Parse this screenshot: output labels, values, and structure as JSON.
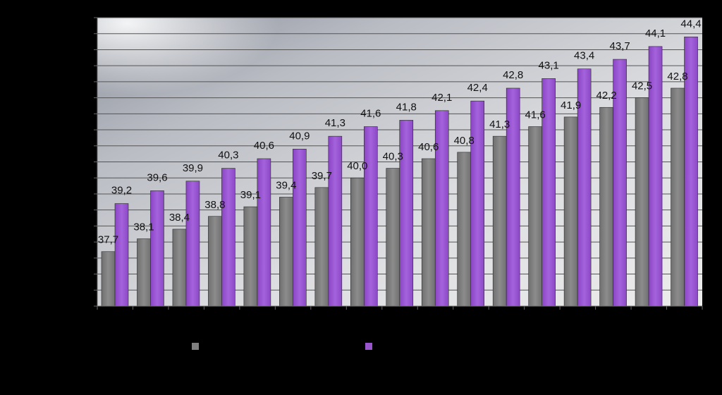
{
  "chart_data": {
    "type": "bar",
    "title": "",
    "xlabel": "",
    "ylabel": "",
    "categories": [
      "",
      "",
      "",
      "",
      "",
      "",
      "",
      "",
      "",
      "",
      "",
      "",
      "",
      "",
      "",
      "",
      ""
    ],
    "series": [
      {
        "values": [
          37.7,
          38.1,
          38.4,
          38.8,
          39.1,
          39.4,
          39.7,
          40.0,
          40.3,
          40.6,
          40.8,
          41.3,
          41.6,
          41.9,
          42.2,
          42.5,
          42.8
        ],
        "labels": [
          "37,7",
          "38,1",
          "38,4",
          "38,8",
          "39,1",
          "39,4",
          "39,7",
          "40,0",
          "40,3",
          "40,6",
          "40,8",
          "41,3",
          "41,6",
          "41,9",
          "42,2",
          "42,5",
          "42,8"
        ],
        "color": "#808080"
      },
      {
        "values": [
          39.2,
          39.6,
          39.9,
          40.3,
          40.6,
          40.9,
          41.3,
          41.6,
          41.8,
          42.1,
          42.4,
          42.8,
          43.1,
          43.4,
          43.7,
          44.1,
          44.4
        ],
        "labels": [
          "39,2",
          "39,6",
          "39,9",
          "40,3",
          "40,6",
          "40,9",
          "41,3",
          "41,6",
          "41,8",
          "42,1",
          "42,4",
          "42,8",
          "43,1",
          "43,4",
          "43,7",
          "44,1",
          "44,4"
        ],
        "color": "#9955CC"
      }
    ],
    "ylim": [
      36.0,
      45.0
    ],
    "grid": true,
    "legend": "bottom"
  }
}
